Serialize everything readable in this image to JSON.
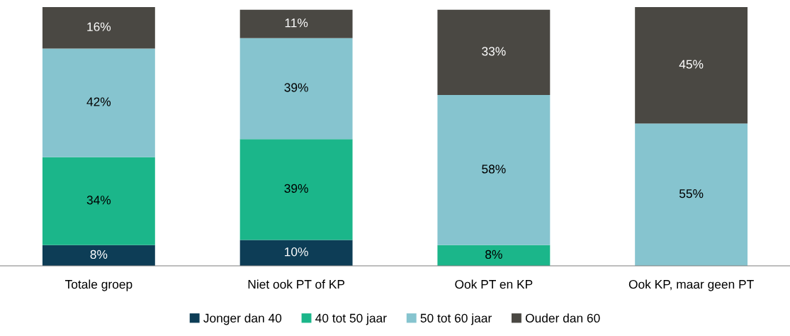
{
  "chart_data": {
    "type": "bar",
    "stacked": true,
    "categories": [
      "Totale groep",
      "Niet ook PT of KP",
      "Ook PT en KP",
      "Ook KP, maar geen PT"
    ],
    "series": [
      {
        "name": "Jonger dan 40",
        "color": "#0d3d56",
        "values": [
          8,
          10,
          null,
          null
        ],
        "value_labels": [
          "8%",
          "10%",
          null,
          null
        ]
      },
      {
        "name": "40 tot 50 jaar",
        "color": "#1bb68a",
        "values": [
          34,
          39,
          8,
          null
        ],
        "value_labels": [
          "34%",
          "39%",
          "8%",
          null
        ]
      },
      {
        "name": "50 tot 60 jaar",
        "color": "#86c4cf",
        "values": [
          42,
          39,
          58,
          55
        ],
        "value_labels": [
          "42%",
          "39%",
          "58%",
          "55%"
        ]
      },
      {
        "name": "Ouder dan 60",
        "color": "#4a4843",
        "values": [
          16,
          11,
          33,
          45
        ],
        "value_labels": [
          "16%",
          "11%",
          "33%",
          "45%"
        ]
      }
    ],
    "ylim": [
      0,
      100
    ],
    "tick_labels": "x",
    "grid": false,
    "legend": "bottom"
  }
}
